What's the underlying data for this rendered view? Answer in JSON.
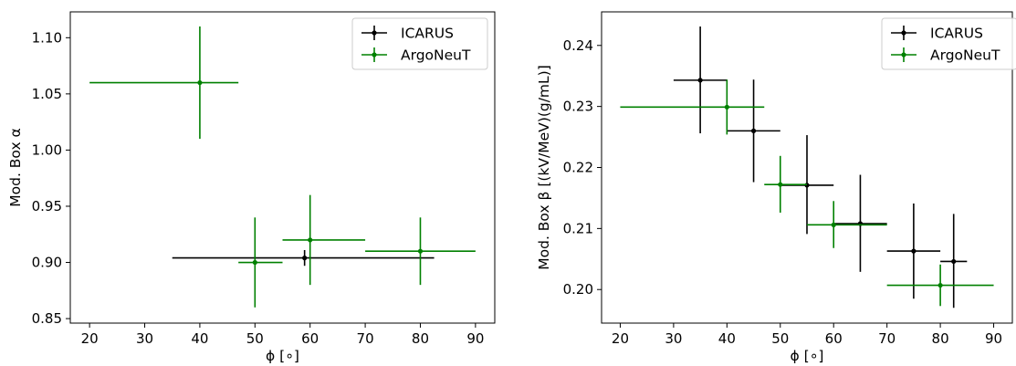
{
  "chart_data": [
    {
      "type": "scatter",
      "title": "",
      "xlabel": "ϕ [∘]",
      "ylabel": "Mod. Box α",
      "xlim": [
        16.5,
        93.5
      ],
      "ylim": [
        0.846,
        1.123
      ],
      "xticks": [
        20,
        30,
        40,
        50,
        60,
        70,
        80,
        90
      ],
      "xtick_labels": [
        "20",
        "30",
        "40",
        "50",
        "60",
        "70",
        "80",
        "90"
      ],
      "yticks": [
        0.85,
        0.9,
        0.95,
        1.0,
        1.05,
        1.1
      ],
      "ytick_labels": [
        "0.85",
        "0.90",
        "0.95",
        "1.00",
        "1.05",
        "1.10"
      ],
      "grid": false,
      "legend_position": "top-right",
      "series": [
        {
          "name": "ICARUS",
          "color": "#000000",
          "points": [
            {
              "x": 59,
              "y": 0.904,
              "xlo": 35,
              "xhi": 82.5,
              "ylo": 0.897,
              "yhi": 0.911
            }
          ]
        },
        {
          "name": "ArgoNeuT",
          "color": "#008000",
          "points": [
            {
              "x": 40,
              "y": 1.06,
              "xlo": 20,
              "xhi": 47,
              "ylo": 1.01,
              "yhi": 1.11
            },
            {
              "x": 50,
              "y": 0.9,
              "xlo": 47,
              "xhi": 55,
              "ylo": 0.86,
              "yhi": 0.94
            },
            {
              "x": 60,
              "y": 0.92,
              "xlo": 55,
              "xhi": 70,
              "ylo": 0.88,
              "yhi": 0.96
            },
            {
              "x": 80,
              "y": 0.91,
              "xlo": 70,
              "xhi": 90,
              "ylo": 0.88,
              "yhi": 0.94
            }
          ]
        }
      ]
    },
    {
      "type": "scatter",
      "title": "",
      "xlabel": "ϕ [∘]",
      "ylabel": "Mod. Box β [(kV/MeV)(g/mL)]",
      "xlim": [
        16.5,
        93.5
      ],
      "ylim": [
        0.1945,
        0.2455
      ],
      "xticks": [
        20,
        30,
        40,
        50,
        60,
        70,
        80,
        90
      ],
      "xtick_labels": [
        "20",
        "30",
        "40",
        "50",
        "60",
        "70",
        "80",
        "90"
      ],
      "yticks": [
        0.2,
        0.21,
        0.22,
        0.23,
        0.24
      ],
      "ytick_labels": [
        "0.20",
        "0.21",
        "0.22",
        "0.23",
        "0.24"
      ],
      "grid": false,
      "legend_position": "top-right",
      "series": [
        {
          "name": "ICARUS",
          "color": "#000000",
          "points": [
            {
              "x": 35,
              "y": 0.2343,
              "xlo": 30,
              "xhi": 40,
              "ylo": 0.2256,
              "yhi": 0.2431
            },
            {
              "x": 45,
              "y": 0.226,
              "xlo": 40,
              "xhi": 50,
              "ylo": 0.2176,
              "yhi": 0.2344
            },
            {
              "x": 55,
              "y": 0.2171,
              "xlo": 50,
              "xhi": 60,
              "ylo": 0.2091,
              "yhi": 0.2253
            },
            {
              "x": 65,
              "y": 0.2108,
              "xlo": 60,
              "xhi": 70,
              "ylo": 0.2029,
              "yhi": 0.2188
            },
            {
              "x": 75,
              "y": 0.2063,
              "xlo": 70,
              "xhi": 80,
              "ylo": 0.1985,
              "yhi": 0.2141
            },
            {
              "x": 82.5,
              "y": 0.2046,
              "xlo": 80,
              "xhi": 85,
              "ylo": 0.197,
              "yhi": 0.2124
            }
          ]
        },
        {
          "name": "ArgoNeuT",
          "color": "#008000",
          "points": [
            {
              "x": 40,
              "y": 0.2299,
              "xlo": 20,
              "xhi": 47,
              "ylo": 0.2254,
              "yhi": 0.2344
            },
            {
              "x": 50,
              "y": 0.2172,
              "xlo": 47,
              "xhi": 55,
              "ylo": 0.2126,
              "yhi": 0.2219
            },
            {
              "x": 60,
              "y": 0.2106,
              "xlo": 55,
              "xhi": 70,
              "ylo": 0.2068,
              "yhi": 0.2145
            },
            {
              "x": 80,
              "y": 0.2007,
              "xlo": 70,
              "xhi": 90,
              "ylo": 0.1973,
              "yhi": 0.2041
            }
          ]
        }
      ]
    }
  ]
}
